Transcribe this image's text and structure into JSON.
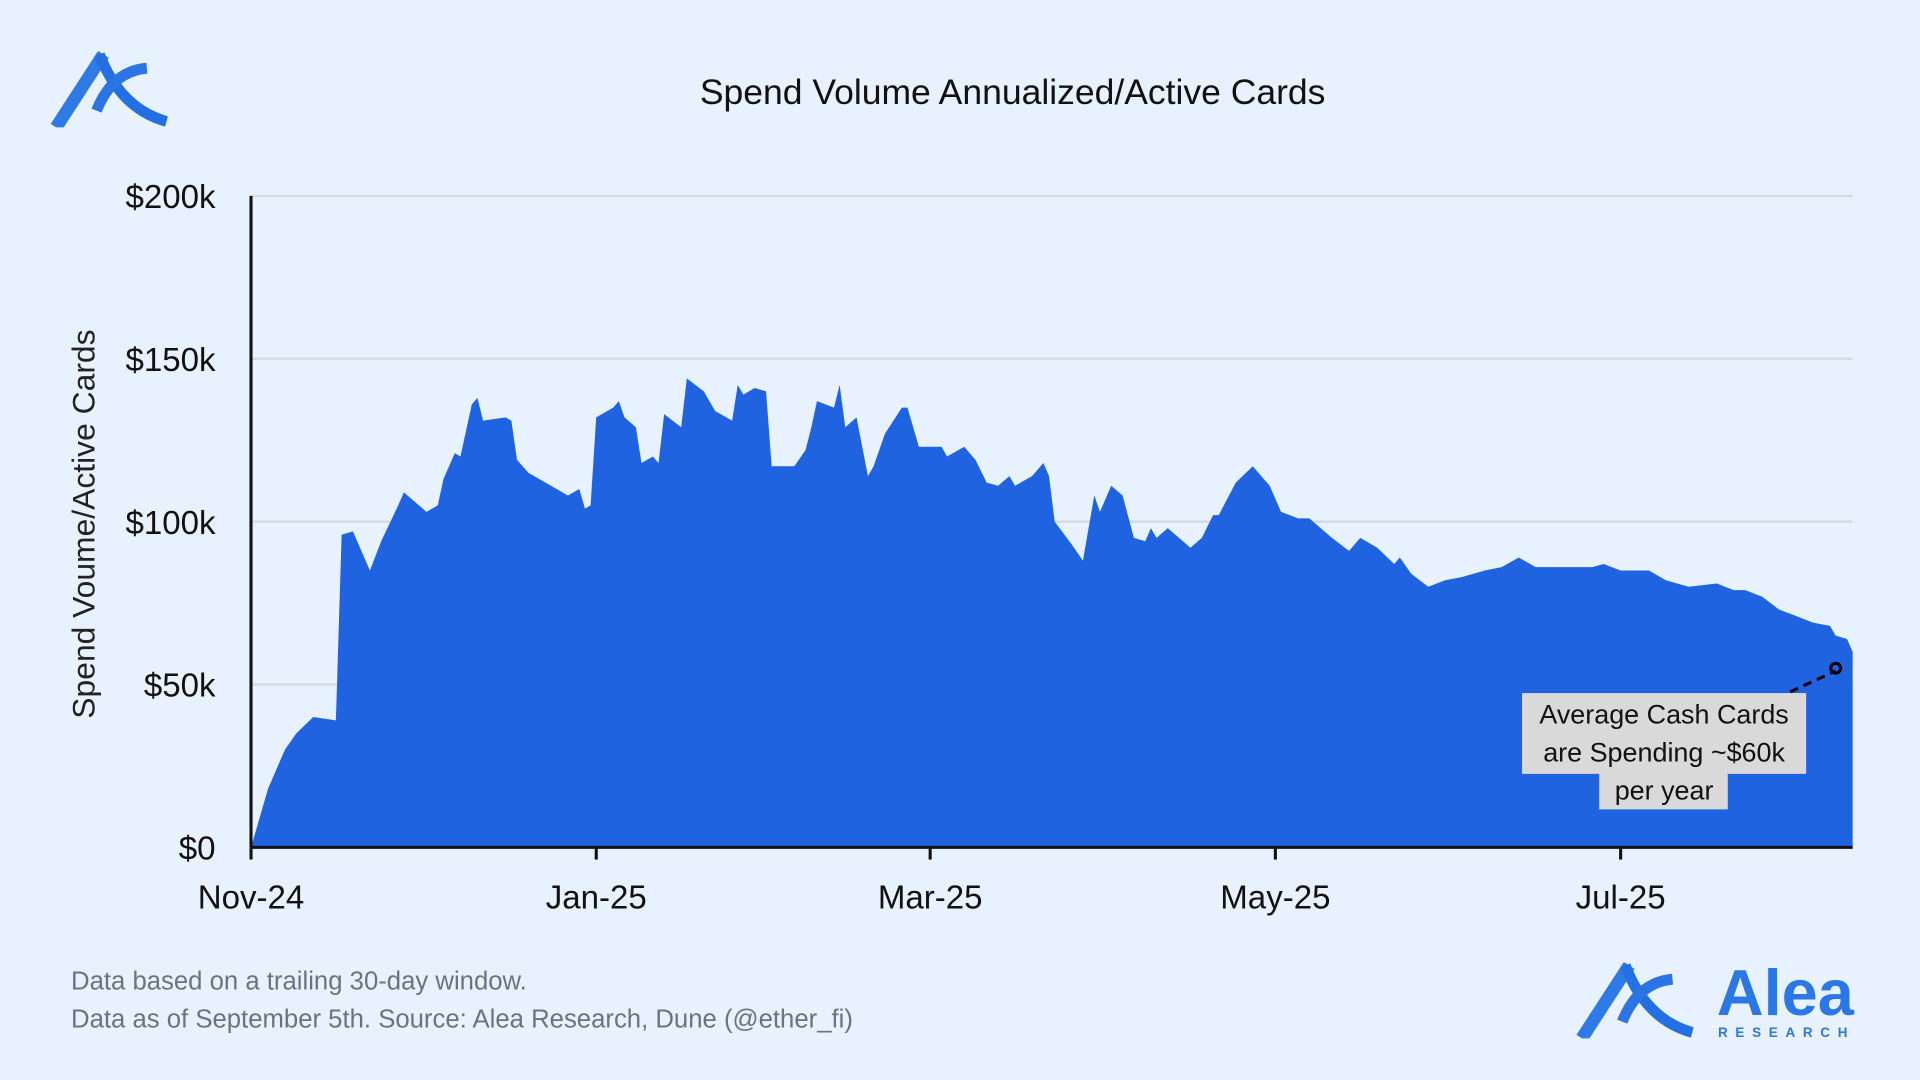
{
  "header": {
    "title": "Spend Volume Annualized/Active Cards"
  },
  "brand": {
    "name": "Alea",
    "sub": "RESEARCH",
    "color": "#2b78e4"
  },
  "footer": {
    "line1": "Data based on a trailing 30-day window.",
    "line2": "Data as of September 5th. Source: Alea Research, Dune (@ether_fi)"
  },
  "annotation": {
    "line1": "Average Cash Cards",
    "line2": "are Spending ~$60k",
    "line3": "per year",
    "point": {
      "day": 280,
      "value": 55
    }
  },
  "chart_data": {
    "type": "area",
    "title": "Spend Volume Annualized/Active Cards",
    "xlabel": "",
    "ylabel": "Spend Voume/Active Cards",
    "x_unit": "days since 2024-11-01",
    "y_unit": "$k",
    "ylim": [
      0,
      200
    ],
    "xlim": [
      0,
      283
    ],
    "grid": true,
    "fill_color": "#1f63e0",
    "y_ticks": [
      {
        "value": 0,
        "label": "$0"
      },
      {
        "value": 50,
        "label": "$50k"
      },
      {
        "value": 100,
        "label": "$100k"
      },
      {
        "value": 150,
        "label": "$150k"
      },
      {
        "value": 200,
        "label": "$200k"
      }
    ],
    "x_ticks": [
      {
        "day": 0,
        "label": "Nov-24"
      },
      {
        "day": 61,
        "label": "Jan-25"
      },
      {
        "day": 120,
        "label": "Mar-25"
      },
      {
        "day": 181,
        "label": "May-25"
      },
      {
        "day": 242,
        "label": "Jul-25"
      }
    ],
    "series": [
      {
        "name": "Spend Volume Annualized/Active Cards",
        "points": [
          [
            0,
            0
          ],
          [
            3,
            18
          ],
          [
            6,
            30
          ],
          [
            8,
            35
          ],
          [
            11,
            40
          ],
          [
            15,
            39
          ],
          [
            16,
            96
          ],
          [
            18,
            97
          ],
          [
            21,
            85
          ],
          [
            23,
            94
          ],
          [
            26,
            105
          ],
          [
            27,
            109
          ],
          [
            29,
            106
          ],
          [
            31,
            103
          ],
          [
            33,
            105
          ],
          [
            34,
            113
          ],
          [
            36,
            121
          ],
          [
            37,
            120
          ],
          [
            39,
            136
          ],
          [
            40,
            138
          ],
          [
            41,
            131
          ],
          [
            45,
            132
          ],
          [
            46,
            131
          ],
          [
            47,
            119
          ],
          [
            49,
            115
          ],
          [
            53,
            111
          ],
          [
            56,
            108
          ],
          [
            58,
            110
          ],
          [
            59,
            104
          ],
          [
            60,
            105
          ],
          [
            61,
            132
          ],
          [
            64,
            135
          ],
          [
            65,
            137
          ],
          [
            66,
            132
          ],
          [
            68,
            129
          ],
          [
            69,
            118
          ],
          [
            71,
            120
          ],
          [
            72,
            118
          ],
          [
            73,
            133
          ],
          [
            76,
            129
          ],
          [
            77,
            144
          ],
          [
            80,
            140
          ],
          [
            82,
            134
          ],
          [
            85,
            131
          ],
          [
            86,
            142
          ],
          [
            87,
            139
          ],
          [
            89,
            141
          ],
          [
            91,
            140
          ],
          [
            92,
            117
          ],
          [
            95,
            117
          ],
          [
            96,
            117
          ],
          [
            98,
            122
          ],
          [
            99,
            129
          ],
          [
            100,
            137
          ],
          [
            103,
            135
          ],
          [
            104,
            142
          ],
          [
            105,
            129
          ],
          [
            107,
            132
          ],
          [
            109,
            114
          ],
          [
            110,
            117
          ],
          [
            112,
            127
          ],
          [
            115,
            135
          ],
          [
            116,
            135
          ],
          [
            118,
            123
          ],
          [
            122,
            123
          ],
          [
            123,
            120
          ],
          [
            126,
            123
          ],
          [
            128,
            119
          ],
          [
            130,
            112
          ],
          [
            132,
            111
          ],
          [
            134,
            114
          ],
          [
            135,
            111
          ],
          [
            138,
            114
          ],
          [
            140,
            118
          ],
          [
            141,
            114
          ],
          [
            142,
            100
          ],
          [
            145,
            93
          ],
          [
            147,
            88
          ],
          [
            148,
            98
          ],
          [
            149,
            108
          ],
          [
            150,
            103
          ],
          [
            152,
            111
          ],
          [
            154,
            108
          ],
          [
            156,
            95
          ],
          [
            158,
            94
          ],
          [
            159,
            98
          ],
          [
            160,
            95
          ],
          [
            162,
            98
          ],
          [
            166,
            92
          ],
          [
            168,
            95
          ],
          [
            170,
            102
          ],
          [
            171,
            102
          ],
          [
            174,
            112
          ],
          [
            177,
            117
          ],
          [
            180,
            111
          ],
          [
            182,
            103
          ],
          [
            185,
            101
          ],
          [
            187,
            101
          ],
          [
            189,
            98
          ],
          [
            191,
            95
          ],
          [
            194,
            91
          ],
          [
            196,
            95
          ],
          [
            199,
            92
          ],
          [
            202,
            87
          ],
          [
            203,
            89
          ],
          [
            205,
            84
          ],
          [
            208,
            80
          ],
          [
            211,
            82
          ],
          [
            214,
            83
          ],
          [
            218,
            85
          ],
          [
            221,
            86
          ],
          [
            224,
            89
          ],
          [
            227,
            86
          ],
          [
            230,
            86
          ],
          [
            234,
            86
          ],
          [
            237,
            86
          ],
          [
            239,
            87
          ],
          [
            242,
            85
          ],
          [
            247,
            85
          ],
          [
            250,
            82
          ],
          [
            254,
            80
          ],
          [
            259,
            81
          ],
          [
            262,
            79
          ],
          [
            264,
            79
          ],
          [
            267,
            77
          ],
          [
            270,
            73
          ],
          [
            273,
            71
          ],
          [
            276,
            69
          ],
          [
            279,
            68
          ],
          [
            280,
            65
          ],
          [
            282,
            64
          ],
          [
            283,
            60
          ]
        ]
      }
    ]
  }
}
